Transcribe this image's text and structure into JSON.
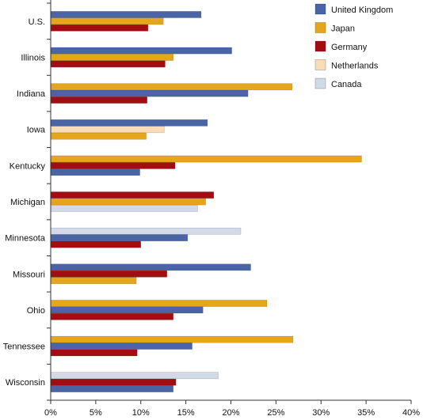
{
  "chart_data": {
    "type": "bar",
    "orientation": "horizontal",
    "title": "",
    "xlabel": "",
    "ylabel": "",
    "xlim": [
      0,
      40
    ],
    "x_ticks": [
      "0%",
      "5%",
      "10%",
      "15%",
      "20%",
      "25%",
      "30%",
      "35%",
      "40%"
    ],
    "grid": false,
    "legend_position": "top-right",
    "legend": [
      {
        "name": "United Kingdom",
        "color": "#4a65a6"
      },
      {
        "name": "Japan",
        "color": "#e5a61c"
      },
      {
        "name": "Germany",
        "color": "#a30d12"
      },
      {
        "name": "Netherlands",
        "color": "#f8ddb8"
      },
      {
        "name": "Canada",
        "color": "#d2dae8"
      }
    ],
    "categories": [
      {
        "name": "U.S.",
        "bars": [
          {
            "series": "United Kingdom",
            "value": 16.7
          },
          {
            "series": "Japan",
            "value": 12.5
          },
          {
            "series": "Germany",
            "value": 10.8
          }
        ]
      },
      {
        "name": "Illinois",
        "bars": [
          {
            "series": "United Kingdom",
            "value": 20.1
          },
          {
            "series": "Japan",
            "value": 13.6
          },
          {
            "series": "Germany",
            "value": 12.7
          }
        ]
      },
      {
        "name": "Indiana",
        "bars": [
          {
            "series": "Japan",
            "value": 26.8
          },
          {
            "series": "United Kingdom",
            "value": 21.9
          },
          {
            "series": "Germany",
            "value": 10.7
          }
        ]
      },
      {
        "name": "Iowa",
        "bars": [
          {
            "series": "United Kingdom",
            "value": 17.4
          },
          {
            "series": "Netherlands",
            "value": 12.6
          },
          {
            "series": "Japan",
            "value": 10.6
          }
        ]
      },
      {
        "name": "Kentucky",
        "bars": [
          {
            "series": "Japan",
            "value": 34.5
          },
          {
            "series": "Germany",
            "value": 13.8
          },
          {
            "series": "United Kingdom",
            "value": 9.9
          }
        ]
      },
      {
        "name": "Michigan",
        "bars": [
          {
            "series": "Germany",
            "value": 18.1
          },
          {
            "series": "Japan",
            "value": 17.2
          },
          {
            "series": "Canada",
            "value": 16.3
          }
        ]
      },
      {
        "name": "Minnesota",
        "bars": [
          {
            "series": "Canada",
            "value": 21.1
          },
          {
            "series": "United Kingdom",
            "value": 15.2
          },
          {
            "series": "Germany",
            "value": 10.0
          }
        ]
      },
      {
        "name": "Missouri",
        "bars": [
          {
            "series": "United Kingdom",
            "value": 22.2
          },
          {
            "series": "Germany",
            "value": 12.9
          },
          {
            "series": "Japan",
            "value": 9.5
          }
        ]
      },
      {
        "name": "Ohio",
        "bars": [
          {
            "series": "Japan",
            "value": 24.0
          },
          {
            "series": "United Kingdom",
            "value": 16.9
          },
          {
            "series": "Germany",
            "value": 13.6
          }
        ]
      },
      {
        "name": "Tennessee",
        "bars": [
          {
            "series": "Japan",
            "value": 26.9
          },
          {
            "series": "United Kingdom",
            "value": 15.7
          },
          {
            "series": "Germany",
            "value": 9.6
          }
        ]
      },
      {
        "name": "Wisconsin",
        "bars": [
          {
            "series": "Canada",
            "value": 18.6
          },
          {
            "series": "Germany",
            "value": 13.9
          },
          {
            "series": "United Kingdom",
            "value": 13.6
          }
        ]
      }
    ]
  }
}
